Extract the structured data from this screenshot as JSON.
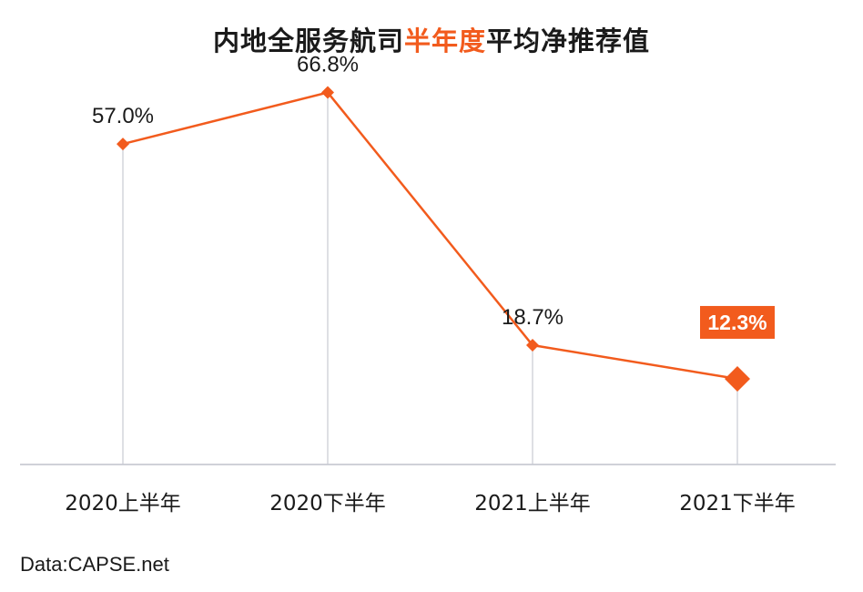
{
  "title": {
    "before": "内地全服务航司",
    "highlight": "半年度",
    "after": "平均净推荐值"
  },
  "source": "Data:CAPSE.net",
  "colors": {
    "line": "#f25b1d",
    "highlight_box": "#f25b1d",
    "text": "#1a1a1a",
    "drop_line": "#c8cad3",
    "axis": "#bfc2cc"
  },
  "chart_data": {
    "type": "line",
    "title": "内地全服务航司半年度平均净推荐值",
    "categories": [
      "2020上半年",
      "2020下半年",
      "2021上半年",
      "2021下半年"
    ],
    "series": [
      {
        "values": [
          57.0,
          66.8,
          18.7,
          12.3
        ],
        "labels": [
          "57.0%",
          "66.8%",
          "18.7%",
          "12.3%"
        ]
      }
    ],
    "highlighted_index": 3,
    "ylim": [
      -4,
      74
    ],
    "grid": false,
    "legend": "none"
  }
}
